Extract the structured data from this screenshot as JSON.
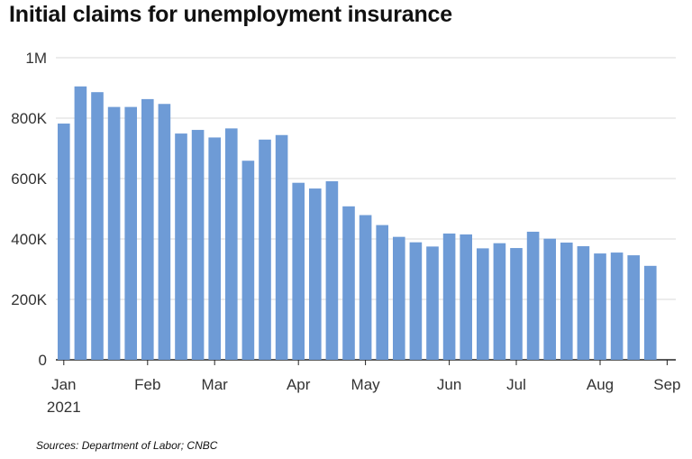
{
  "title": "Initial claims for unemployment insurance",
  "source": "Sources: Department of Labor; CNBC",
  "chart_data": {
    "type": "bar",
    "title": "Initial claims for unemployment insurance",
    "xlabel": "",
    "ylabel": "",
    "ylim": [
      0,
      1000000
    ],
    "grid": true,
    "bar_color": "#6e9bd6",
    "grid_color": "#d9d9d9",
    "y_ticks": [
      {
        "value": 0,
        "label": "0"
      },
      {
        "value": 200000,
        "label": "200K"
      },
      {
        "value": 400000,
        "label": "400K"
      },
      {
        "value": 600000,
        "label": "600K"
      },
      {
        "value": 800000,
        "label": "800K"
      },
      {
        "value": 1000000,
        "label": "1M"
      }
    ],
    "x_ticks": [
      {
        "index": 0,
        "label": "Jan",
        "sublabel": "2021"
      },
      {
        "index": 5,
        "label": "Feb"
      },
      {
        "index": 9,
        "label": "Mar"
      },
      {
        "index": 14,
        "label": "Apr"
      },
      {
        "index": 18,
        "label": "May"
      },
      {
        "index": 23,
        "label": "Jun"
      },
      {
        "index": 27,
        "label": "Jul"
      },
      {
        "index": 32,
        "label": "Aug"
      },
      {
        "index": 36,
        "label": "Sep"
      }
    ],
    "values": [
      782000,
      905000,
      886000,
      837000,
      837000,
      863000,
      847000,
      749000,
      761000,
      736000,
      766000,
      659000,
      729000,
      744000,
      586000,
      567000,
      591000,
      508000,
      479000,
      446000,
      407000,
      389000,
      375000,
      418000,
      415000,
      369000,
      386000,
      370000,
      424000,
      401000,
      388000,
      376000,
      352000,
      355000,
      346000,
      311000
    ]
  }
}
